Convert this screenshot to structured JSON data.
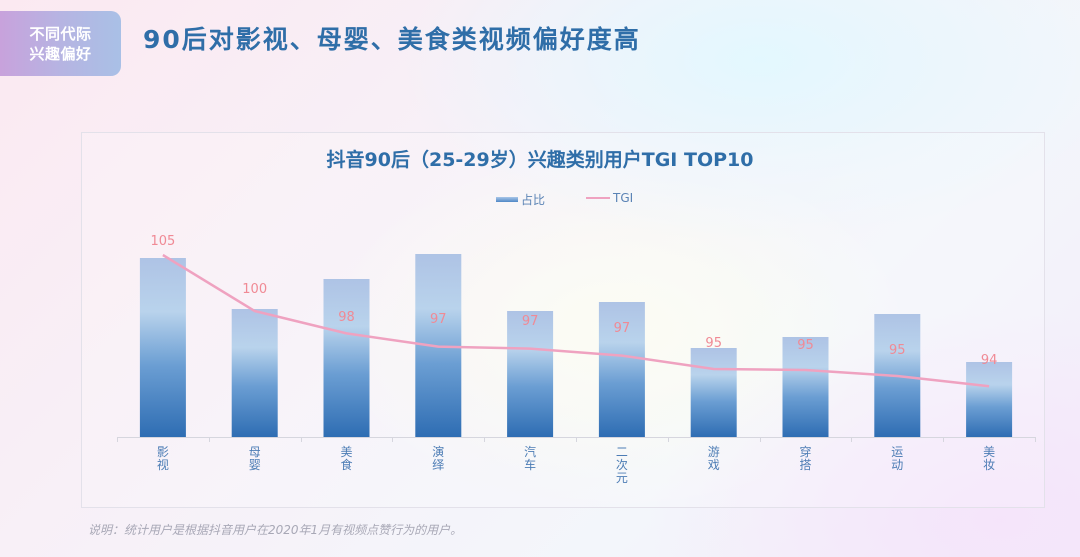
{
  "tag": {
    "line1": "不同代际",
    "line2": "兴趣偏好"
  },
  "page_title": "90后对影视、母婴、美食类视频偏好度高",
  "chart_data": {
    "type": "bar",
    "title": "抖音90后（25-29岁）兴趣类别用户TGI TOP10",
    "xlabel": "",
    "ylabel": "",
    "grid": false,
    "legend_position": "top",
    "legend": [
      "占比",
      "TGI"
    ],
    "categories": [
      "影视",
      "母婴",
      "美食",
      "演绎",
      "汽车",
      "二次元",
      "游戏",
      "穿搭",
      "运动",
      "美妆"
    ],
    "series": [
      {
        "name": "占比",
        "type": "bar",
        "values": [
          179,
          128,
          158,
          183,
          126,
          135,
          89,
          100,
          123,
          75
        ],
        "note": "relative bar heights (no axis shown)"
      },
      {
        "name": "TGI",
        "type": "line",
        "values": [
          105,
          100,
          98,
          97,
          97,
          97,
          95,
          95,
          95,
          94
        ]
      }
    ],
    "colors": {
      "bar_top": "#aec4e6",
      "bar_mid": "#b8d3ec",
      "bar_bottom": "#2f6fb5",
      "line": "#efa2c0",
      "label": "#f08a95"
    }
  },
  "legend": {
    "bar_label": "占比",
    "line_label": "TGI"
  },
  "footnote": "说明：统计用户是根据抖音用户在2020年1月有视频点赞行为的用户。"
}
